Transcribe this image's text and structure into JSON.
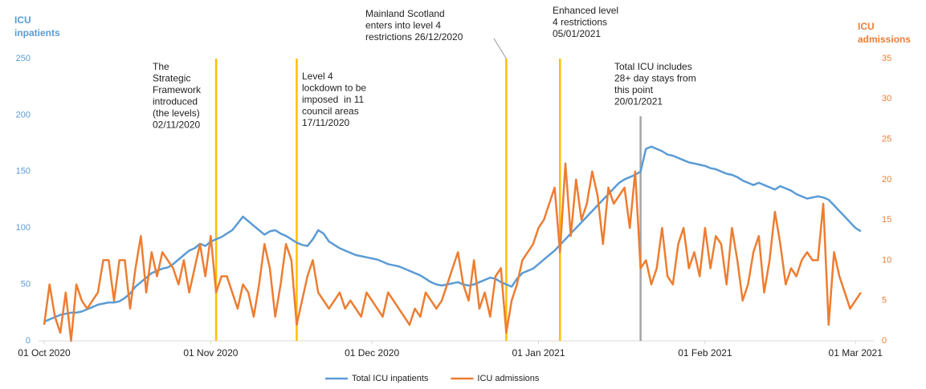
{
  "chart_data": {
    "type": "line",
    "y_label": [
      "ICU",
      "inpatients"
    ],
    "y2_label": [
      "ICU",
      "admissions"
    ],
    "x": [
      "2020-10-01",
      "2020-10-02",
      "2020-10-03",
      "2020-10-04",
      "2020-10-05",
      "2020-10-06",
      "2020-10-07",
      "2020-10-08",
      "2020-10-09",
      "2020-10-10",
      "2020-10-11",
      "2020-10-12",
      "2020-10-13",
      "2020-10-14",
      "2020-10-15",
      "2020-10-16",
      "2020-10-17",
      "2020-10-18",
      "2020-10-19",
      "2020-10-20",
      "2020-10-21",
      "2020-10-22",
      "2020-10-23",
      "2020-10-24",
      "2020-10-25",
      "2020-10-26",
      "2020-10-27",
      "2020-10-28",
      "2020-10-29",
      "2020-10-30",
      "2020-10-31",
      "2020-11-01",
      "2020-11-02",
      "2020-11-03",
      "2020-11-04",
      "2020-11-05",
      "2020-11-06",
      "2020-11-07",
      "2020-11-08",
      "2020-11-09",
      "2020-11-10",
      "2020-11-11",
      "2020-11-12",
      "2020-11-13",
      "2020-11-14",
      "2020-11-15",
      "2020-11-16",
      "2020-11-17",
      "2020-11-18",
      "2020-11-19",
      "2020-11-20",
      "2020-11-21",
      "2020-11-22",
      "2020-11-23",
      "2020-11-24",
      "2020-11-25",
      "2020-11-26",
      "2020-11-27",
      "2020-11-28",
      "2020-11-29",
      "2020-11-30",
      "2020-12-01",
      "2020-12-02",
      "2020-12-03",
      "2020-12-04",
      "2020-12-05",
      "2020-12-06",
      "2020-12-07",
      "2020-12-08",
      "2020-12-09",
      "2020-12-10",
      "2020-12-11",
      "2020-12-12",
      "2020-12-13",
      "2020-12-14",
      "2020-12-15",
      "2020-12-16",
      "2020-12-17",
      "2020-12-18",
      "2020-12-19",
      "2020-12-20",
      "2020-12-21",
      "2020-12-22",
      "2020-12-23",
      "2020-12-24",
      "2020-12-25",
      "2020-12-26",
      "2020-12-27",
      "2020-12-28",
      "2020-12-29",
      "2020-12-30",
      "2020-12-31",
      "2021-01-01",
      "2021-01-02",
      "2021-01-03",
      "2021-01-04",
      "2021-01-05",
      "2021-01-06",
      "2021-01-07",
      "2021-01-08",
      "2021-01-09",
      "2021-01-10",
      "2021-01-11",
      "2021-01-12",
      "2021-01-13",
      "2021-01-14",
      "2021-01-15",
      "2021-01-16",
      "2021-01-17",
      "2021-01-18",
      "2021-01-19",
      "2021-01-20",
      "2021-01-21",
      "2021-01-22",
      "2021-01-23",
      "2021-01-24",
      "2021-01-25",
      "2021-01-26",
      "2021-01-27",
      "2021-01-28",
      "2021-01-29",
      "2021-01-30",
      "2021-01-31",
      "2021-02-01",
      "2021-02-02",
      "2021-02-03",
      "2021-02-04",
      "2021-02-05",
      "2021-02-06",
      "2021-02-07",
      "2021-02-08",
      "2021-02-09",
      "2021-02-10",
      "2021-02-11",
      "2021-02-12",
      "2021-02-13",
      "2021-02-14",
      "2021-02-15",
      "2021-02-16",
      "2021-02-17",
      "2021-02-18",
      "2021-02-19",
      "2021-02-20",
      "2021-02-21",
      "2021-02-22",
      "2021-02-23",
      "2021-02-24",
      "2021-02-25",
      "2021-02-26",
      "2021-02-27",
      "2021-02-28",
      "2021-03-01",
      "2021-03-02"
    ],
    "series": [
      {
        "name": "Total ICU inpatients",
        "color": "#5b9bd5",
        "values": [
          17,
          19,
          21,
          23,
          24,
          25,
          25,
          26,
          28,
          30,
          32,
          33,
          34,
          34,
          35,
          38,
          42,
          48,
          52,
          56,
          60,
          62,
          64,
          65,
          68,
          72,
          76,
          80,
          82,
          86,
          84,
          88,
          90,
          92,
          95,
          98,
          104,
          110,
          106,
          102,
          98,
          94,
          97,
          98,
          95,
          93,
          90,
          87,
          85,
          84,
          90,
          98,
          95,
          88,
          85,
          82,
          80,
          78,
          76,
          75,
          74,
          73,
          72,
          70,
          68,
          67,
          66,
          64,
          62,
          60,
          58,
          55,
          52,
          50,
          49,
          50,
          51,
          52,
          50,
          49,
          50,
          52,
          54,
          56,
          55,
          52,
          50,
          48,
          55,
          60,
          62,
          64,
          68,
          72,
          76,
          80,
          85,
          90,
          95,
          100,
          105,
          110,
          115,
          120,
          125,
          130,
          135,
          140,
          143,
          145,
          147,
          150,
          170,
          172,
          170,
          168,
          165,
          164,
          162,
          160,
          158,
          157,
          156,
          155,
          153,
          152,
          150,
          148,
          147,
          145,
          142,
          140,
          138,
          140,
          138,
          136,
          134,
          137,
          135,
          133,
          130,
          128,
          126,
          127,
          128,
          127,
          125,
          120,
          115,
          110,
          105,
          100,
          97
        ]
      },
      {
        "name": "ICU admissions",
        "color": "#ed7d31",
        "axis": "y2",
        "values": [
          2,
          7,
          3,
          1,
          6,
          0,
          7,
          5,
          4,
          5,
          6,
          10,
          10,
          5,
          10,
          10,
          4,
          9,
          13,
          6,
          11,
          8,
          11,
          10,
          9,
          7,
          10,
          6,
          9,
          12,
          8,
          13,
          6,
          8,
          8,
          6,
          4,
          7,
          6,
          3,
          7,
          12,
          9,
          3,
          7,
          12,
          10,
          2,
          5,
          8,
          10,
          6,
          5,
          4,
          5,
          6,
          4,
          5,
          4,
          3,
          6,
          5,
          4,
          3,
          6,
          5,
          4,
          3,
          2,
          4,
          3,
          6,
          5,
          4,
          5,
          7,
          9,
          11,
          7,
          5,
          10,
          4,
          6,
          3,
          8,
          9,
          1,
          5,
          7,
          10,
          11,
          12,
          14,
          15,
          17,
          19,
          11,
          22,
          13,
          20,
          15,
          17,
          21,
          18,
          12,
          19,
          17,
          18,
          19,
          14,
          21,
          9,
          10,
          7,
          9,
          14,
          8,
          7,
          12,
          14,
          9,
          11,
          8,
          14,
          9,
          13,
          12,
          7,
          14,
          10,
          5,
          7,
          11,
          13,
          6,
          10,
          16,
          12,
          7,
          9,
          8,
          10,
          11,
          10,
          10,
          17,
          2,
          11,
          8,
          6,
          4,
          5,
          6
        ]
      }
    ],
    "xlim": [
      "2020-10-01",
      "2021-03-05"
    ],
    "xticks": [
      {
        "value": "2020-10-01",
        "label": "01 Oct 2020"
      },
      {
        "value": "2020-11-01",
        "label": "01 Nov 2020"
      },
      {
        "value": "2020-12-01",
        "label": "01 Dec 2020"
      },
      {
        "value": "2021-01-01",
        "label": "01 Jan 2021"
      },
      {
        "value": "2021-02-01",
        "label": "01 Feb 2021"
      },
      {
        "value": "2021-03-01",
        "label": "01 Mar 2021"
      }
    ],
    "ylim": [
      0,
      250
    ],
    "yticks": [
      0,
      50,
      100,
      150,
      200,
      250
    ],
    "y2lim": [
      0,
      35
    ],
    "y2ticks": [
      0,
      5,
      10,
      15,
      20,
      25,
      30,
      35
    ],
    "grid": false,
    "legend": "bottom",
    "annotations": [
      {
        "date": "2020-11-02",
        "color": "#ffc000",
        "lines": [
          "The",
          "Strategic",
          "Framework",
          "introduced",
          "(the levels)",
          "02/11/2020"
        ]
      },
      {
        "date": "2020-11-17",
        "color": "#ffc000",
        "lines": [
          "Level 4",
          "lockdown to be",
          "imposed  in 11",
          "council areas",
          "17/11/2020"
        ]
      },
      {
        "date": "2020-12-26",
        "color": "#ffc000",
        "lines": [
          "Mainland Scotland",
          "enters into level 4",
          "restrictions 26/12/2020"
        ]
      },
      {
        "date": "2021-01-05",
        "color": "#ffc000",
        "lines": [
          "Enhanced level",
          "4 restrictions",
          "05/01/2021"
        ]
      },
      {
        "date": "2021-01-20",
        "color": "#a5a5a5",
        "lines": [
          "Total ICU includes",
          "28+ day stays from",
          "this point",
          "20/01/2021"
        ]
      }
    ]
  }
}
